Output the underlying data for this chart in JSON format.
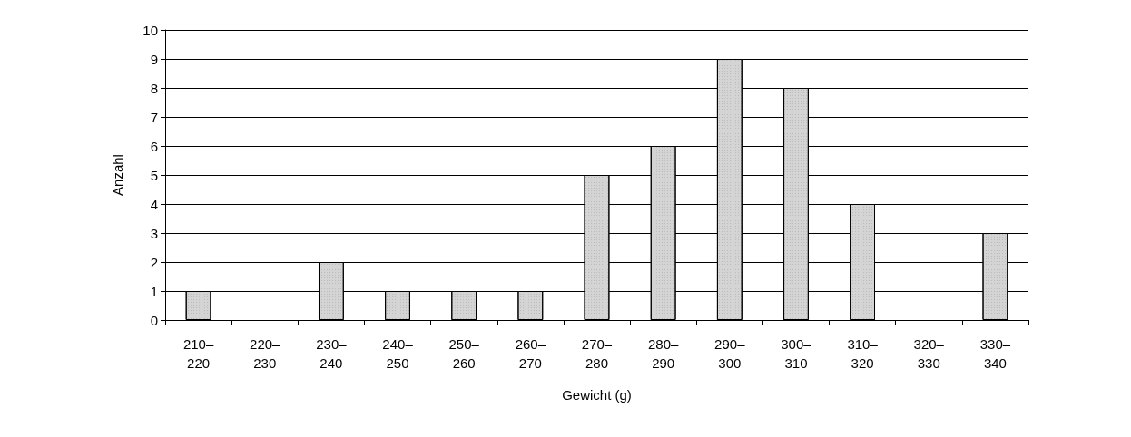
{
  "chart_data": {
    "type": "bar",
    "xlabel": "Gewicht (g)",
    "ylabel": "Anzahl",
    "categories": [
      "210–220",
      "220–230",
      "230–240",
      "240–250",
      "250–260",
      "260–270",
      "270–280",
      "280–290",
      "290–300",
      "300–310",
      "310–320",
      "320–330",
      "330–340"
    ],
    "values": [
      1,
      0,
      2,
      1,
      1,
      1,
      5,
      6,
      9,
      8,
      4,
      0,
      3
    ],
    "color": "#d4d4d4",
    "ylim": [
      0,
      10
    ],
    "yticks": [
      0,
      1,
      2,
      3,
      4,
      5,
      6,
      7,
      8,
      9,
      10
    ],
    "grid": "y"
  }
}
